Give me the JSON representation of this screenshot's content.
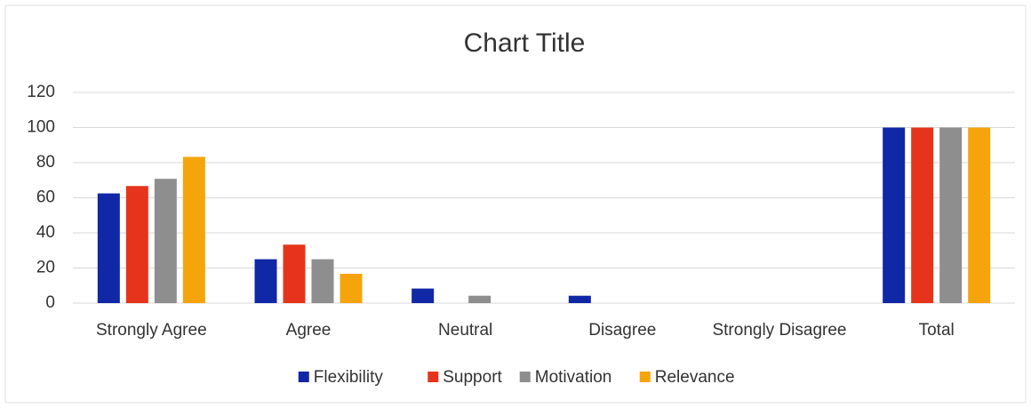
{
  "chart_data": {
    "type": "bar",
    "title": "Chart Title",
    "categories": [
      "Strongly Agree",
      "Agree",
      "Neutral",
      "Disagree",
      "Strongly Disagree",
      "Total"
    ],
    "series": [
      {
        "name": "Flexibility",
        "color": "#1027a6",
        "values": [
          62.5,
          25,
          8.3,
          4.2,
          0,
          100
        ]
      },
      {
        "name": "Support",
        "color": "#e6341c",
        "values": [
          66.7,
          33.3,
          0,
          0,
          0,
          100
        ]
      },
      {
        "name": "Motivation",
        "color": "#8e8e8e",
        "values": [
          70.8,
          25,
          4.2,
          0,
          0,
          100
        ]
      },
      {
        "name": "Relevance",
        "color": "#f5a40c",
        "values": [
          83.3,
          16.7,
          0,
          0,
          0,
          100
        ]
      }
    ],
    "ylim": [
      0,
      120
    ],
    "yticks": [
      0,
      20,
      40,
      60,
      80,
      100,
      120
    ],
    "grid": true,
    "legend": "bottom"
  }
}
